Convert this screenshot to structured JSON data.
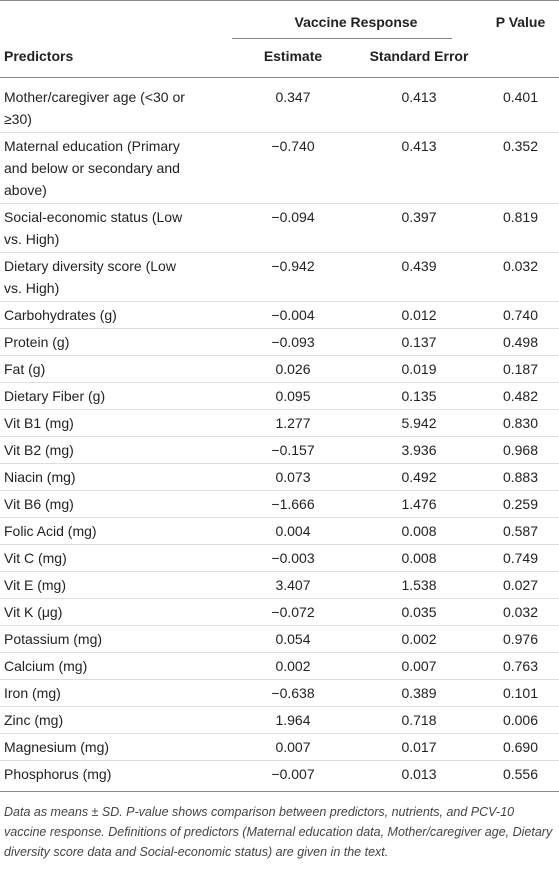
{
  "table": {
    "group_header": "Vaccine Response",
    "columns": [
      "Predictors",
      "Estimate",
      "Standard Error",
      "P Value"
    ],
    "rows": [
      [
        "Mother/caregiver age (<30 or ≥30)",
        "0.347",
        "0.413",
        "0.401"
      ],
      [
        "Maternal education (Primary and below or secondary and above)",
        "−0.740",
        "0.413",
        "0.352"
      ],
      [
        "Social-economic status (Low vs. High)",
        "−0.094",
        "0.397",
        "0.819"
      ],
      [
        "Dietary diversity score (Low vs. High)",
        "−0.942",
        "0.439",
        "0.032"
      ],
      [
        "Carbohydrates (g)",
        "−0.004",
        "0.012",
        "0.740"
      ],
      [
        "Protein (g)",
        "−0.093",
        "0.137",
        "0.498"
      ],
      [
        "Fat (g)",
        "0.026",
        "0.019",
        "0.187"
      ],
      [
        "Dietary Fiber (g)",
        "0.095",
        "0.135",
        "0.482"
      ],
      [
        "Vit B1 (mg)",
        "1.277",
        "5.942",
        "0.830"
      ],
      [
        "Vit B2 (mg)",
        "−0.157",
        "3.936",
        "0.968"
      ],
      [
        "Niacin (mg)",
        "0.073",
        "0.492",
        "0.883"
      ],
      [
        "Vit B6 (mg)",
        "−1.666",
        "1.476",
        "0.259"
      ],
      [
        "Folic Acid (mg)",
        "0.004",
        "0.008",
        "0.587"
      ],
      [
        "Vit C (mg)",
        "−0.003",
        "0.008",
        "0.749"
      ],
      [
        "Vit E (mg)",
        "3.407",
        "1.538",
        "0.027"
      ],
      [
        "Vit K (μg)",
        "−0.072",
        "0.035",
        "0.032"
      ],
      [
        "Potassium (mg)",
        "0.054",
        "0.002",
        "0.976"
      ],
      [
        "Calcium (mg)",
        "0.002",
        "0.007",
        "0.763"
      ],
      [
        "Iron (mg)",
        "−0.638",
        "0.389",
        "0.101"
      ],
      [
        "Zinc (mg)",
        "1.964",
        "0.718",
        "0.006"
      ],
      [
        "Magnesium (mg)",
        "0.007",
        "0.017",
        "0.690"
      ],
      [
        "Phosphorus (mg)",
        "−0.007",
        "0.013",
        "0.556"
      ]
    ]
  },
  "footnote": "Data as means ± SD. P-value shows comparison between predictors, nutrients, and PCV-10 vaccine response. Definitions of predictors (Maternal education data, Mother/caregiver age, Dietary diversity score data and Social-economic status) are given in the text."
}
